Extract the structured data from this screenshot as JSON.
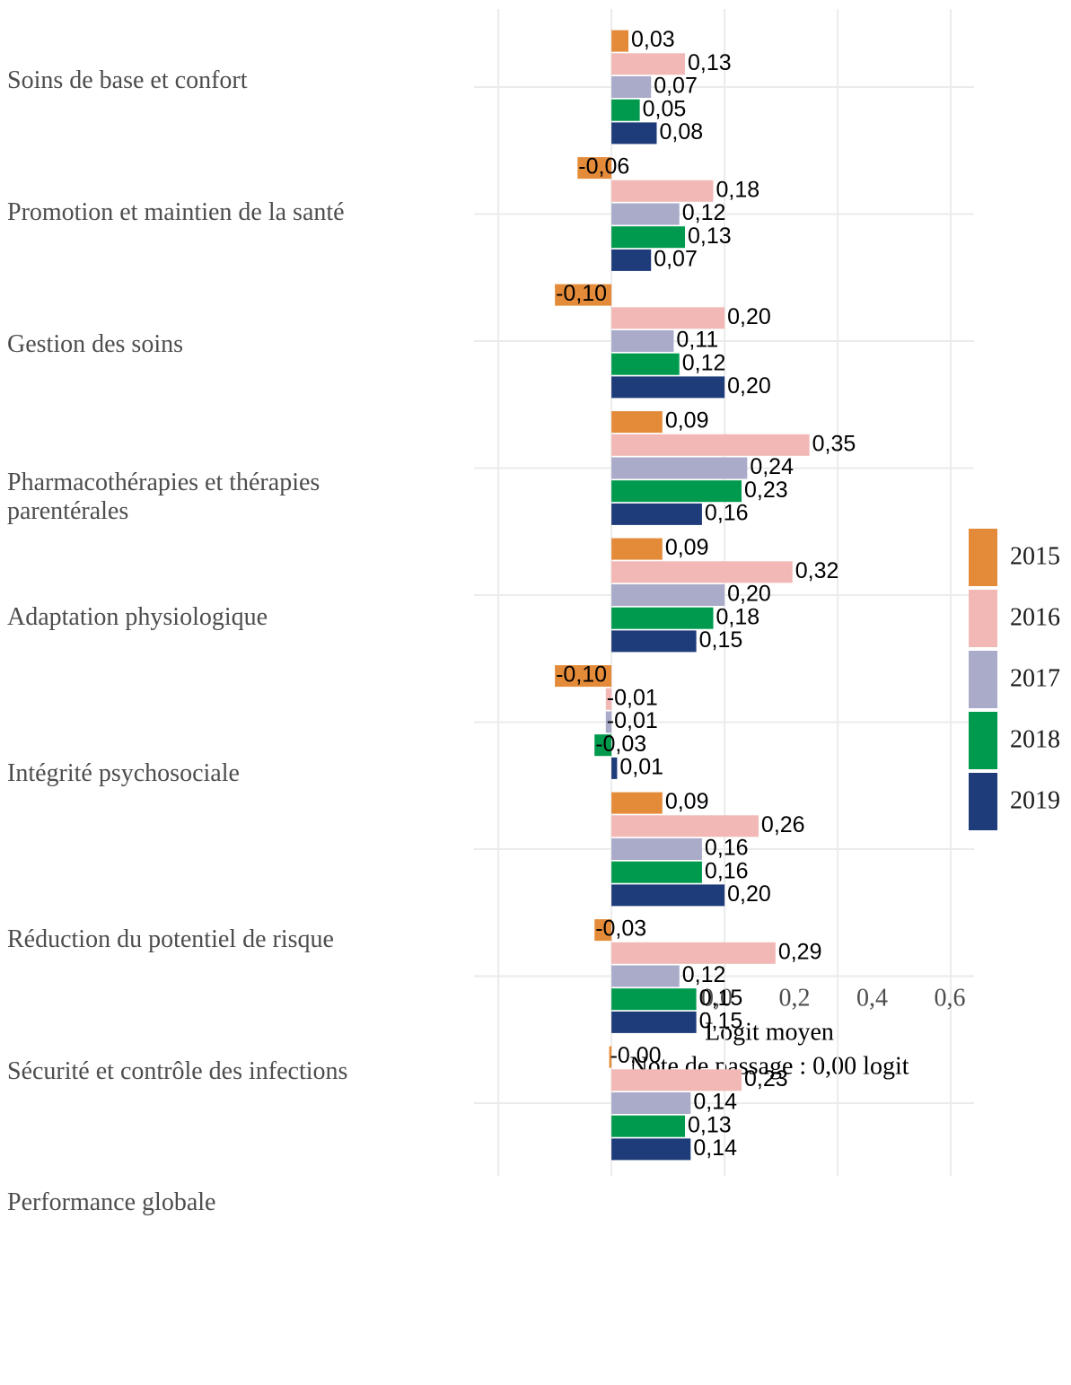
{
  "chart_data": {
    "type": "bar",
    "orientation": "horizontal",
    "x_label": "Logit moyen",
    "note": "Note de passage : 0,00 logit",
    "categories": [
      "Soins de base et confort",
      "Promotion et maintien de la santé",
      "Gestion des soins",
      "Pharmacothérapies et thérapies parentérales",
      "Adaptation physiologique",
      "Intégrité psychosociale",
      "Réduction du potentiel de risque",
      "Sécurité et contrôle des infections",
      "Performance globale"
    ],
    "series": [
      {
        "name": "2015",
        "color": "#e48b3a",
        "values": [
          0.03,
          -0.06,
          -0.1,
          0.09,
          0.09,
          -0.1,
          0.09,
          -0.03,
          -0.004
        ],
        "value_labels": [
          "0,03",
          "-0,06",
          "-0,10",
          "0,09",
          "0,09",
          "-0,10",
          "0,09",
          "-0,03",
          "-0,00"
        ]
      },
      {
        "name": "2016",
        "color": "#f2b8b5",
        "values": [
          0.13,
          0.18,
          0.2,
          0.35,
          0.32,
          -0.01,
          0.26,
          0.29,
          0.23
        ],
        "value_labels": [
          "0,13",
          "0,18",
          "0,20",
          "0,35",
          "0,32",
          "-0,01",
          "0,26",
          "0,29",
          "0,23"
        ]
      },
      {
        "name": "2017",
        "color": "#a9abc9",
        "values": [
          0.07,
          0.12,
          0.11,
          0.24,
          0.2,
          -0.01,
          0.16,
          0.12,
          0.14
        ],
        "value_labels": [
          "0,07",
          "0,12",
          "0,11",
          "0,24",
          "0,20",
          "-0,01",
          "0,16",
          "0,12",
          "0,14"
        ]
      },
      {
        "name": "2018",
        "color": "#009a4e",
        "values": [
          0.05,
          0.13,
          0.12,
          0.23,
          0.18,
          -0.03,
          0.16,
          0.15,
          0.13
        ],
        "value_labels": [
          "0,05",
          "0,13",
          "0,12",
          "0,23",
          "0,18",
          "-0,03",
          "0,16",
          "0,15",
          "0,13"
        ]
      },
      {
        "name": "2019",
        "color": "#1f3c7a",
        "values": [
          0.08,
          0.07,
          0.2,
          0.16,
          0.15,
          0.01,
          0.2,
          0.15,
          0.14
        ],
        "value_labels": [
          "0,08",
          "0,07",
          "0,20",
          "0,16",
          "0,15",
          "0,01",
          "0,20",
          "0,15",
          "0,14"
        ]
      }
    ],
    "xlim": [
      -0.243,
      0.641
    ],
    "xticks": [
      {
        "value": -0.2,
        "label": "-0,2"
      },
      {
        "value": 0,
        "label": "0,0"
      },
      {
        "value": 0.2,
        "label": "0,2"
      },
      {
        "value": 0.4,
        "label": "0,4"
      },
      {
        "value": 0.6,
        "label": "0,6"
      }
    ],
    "grid": true,
    "legend": "right"
  }
}
